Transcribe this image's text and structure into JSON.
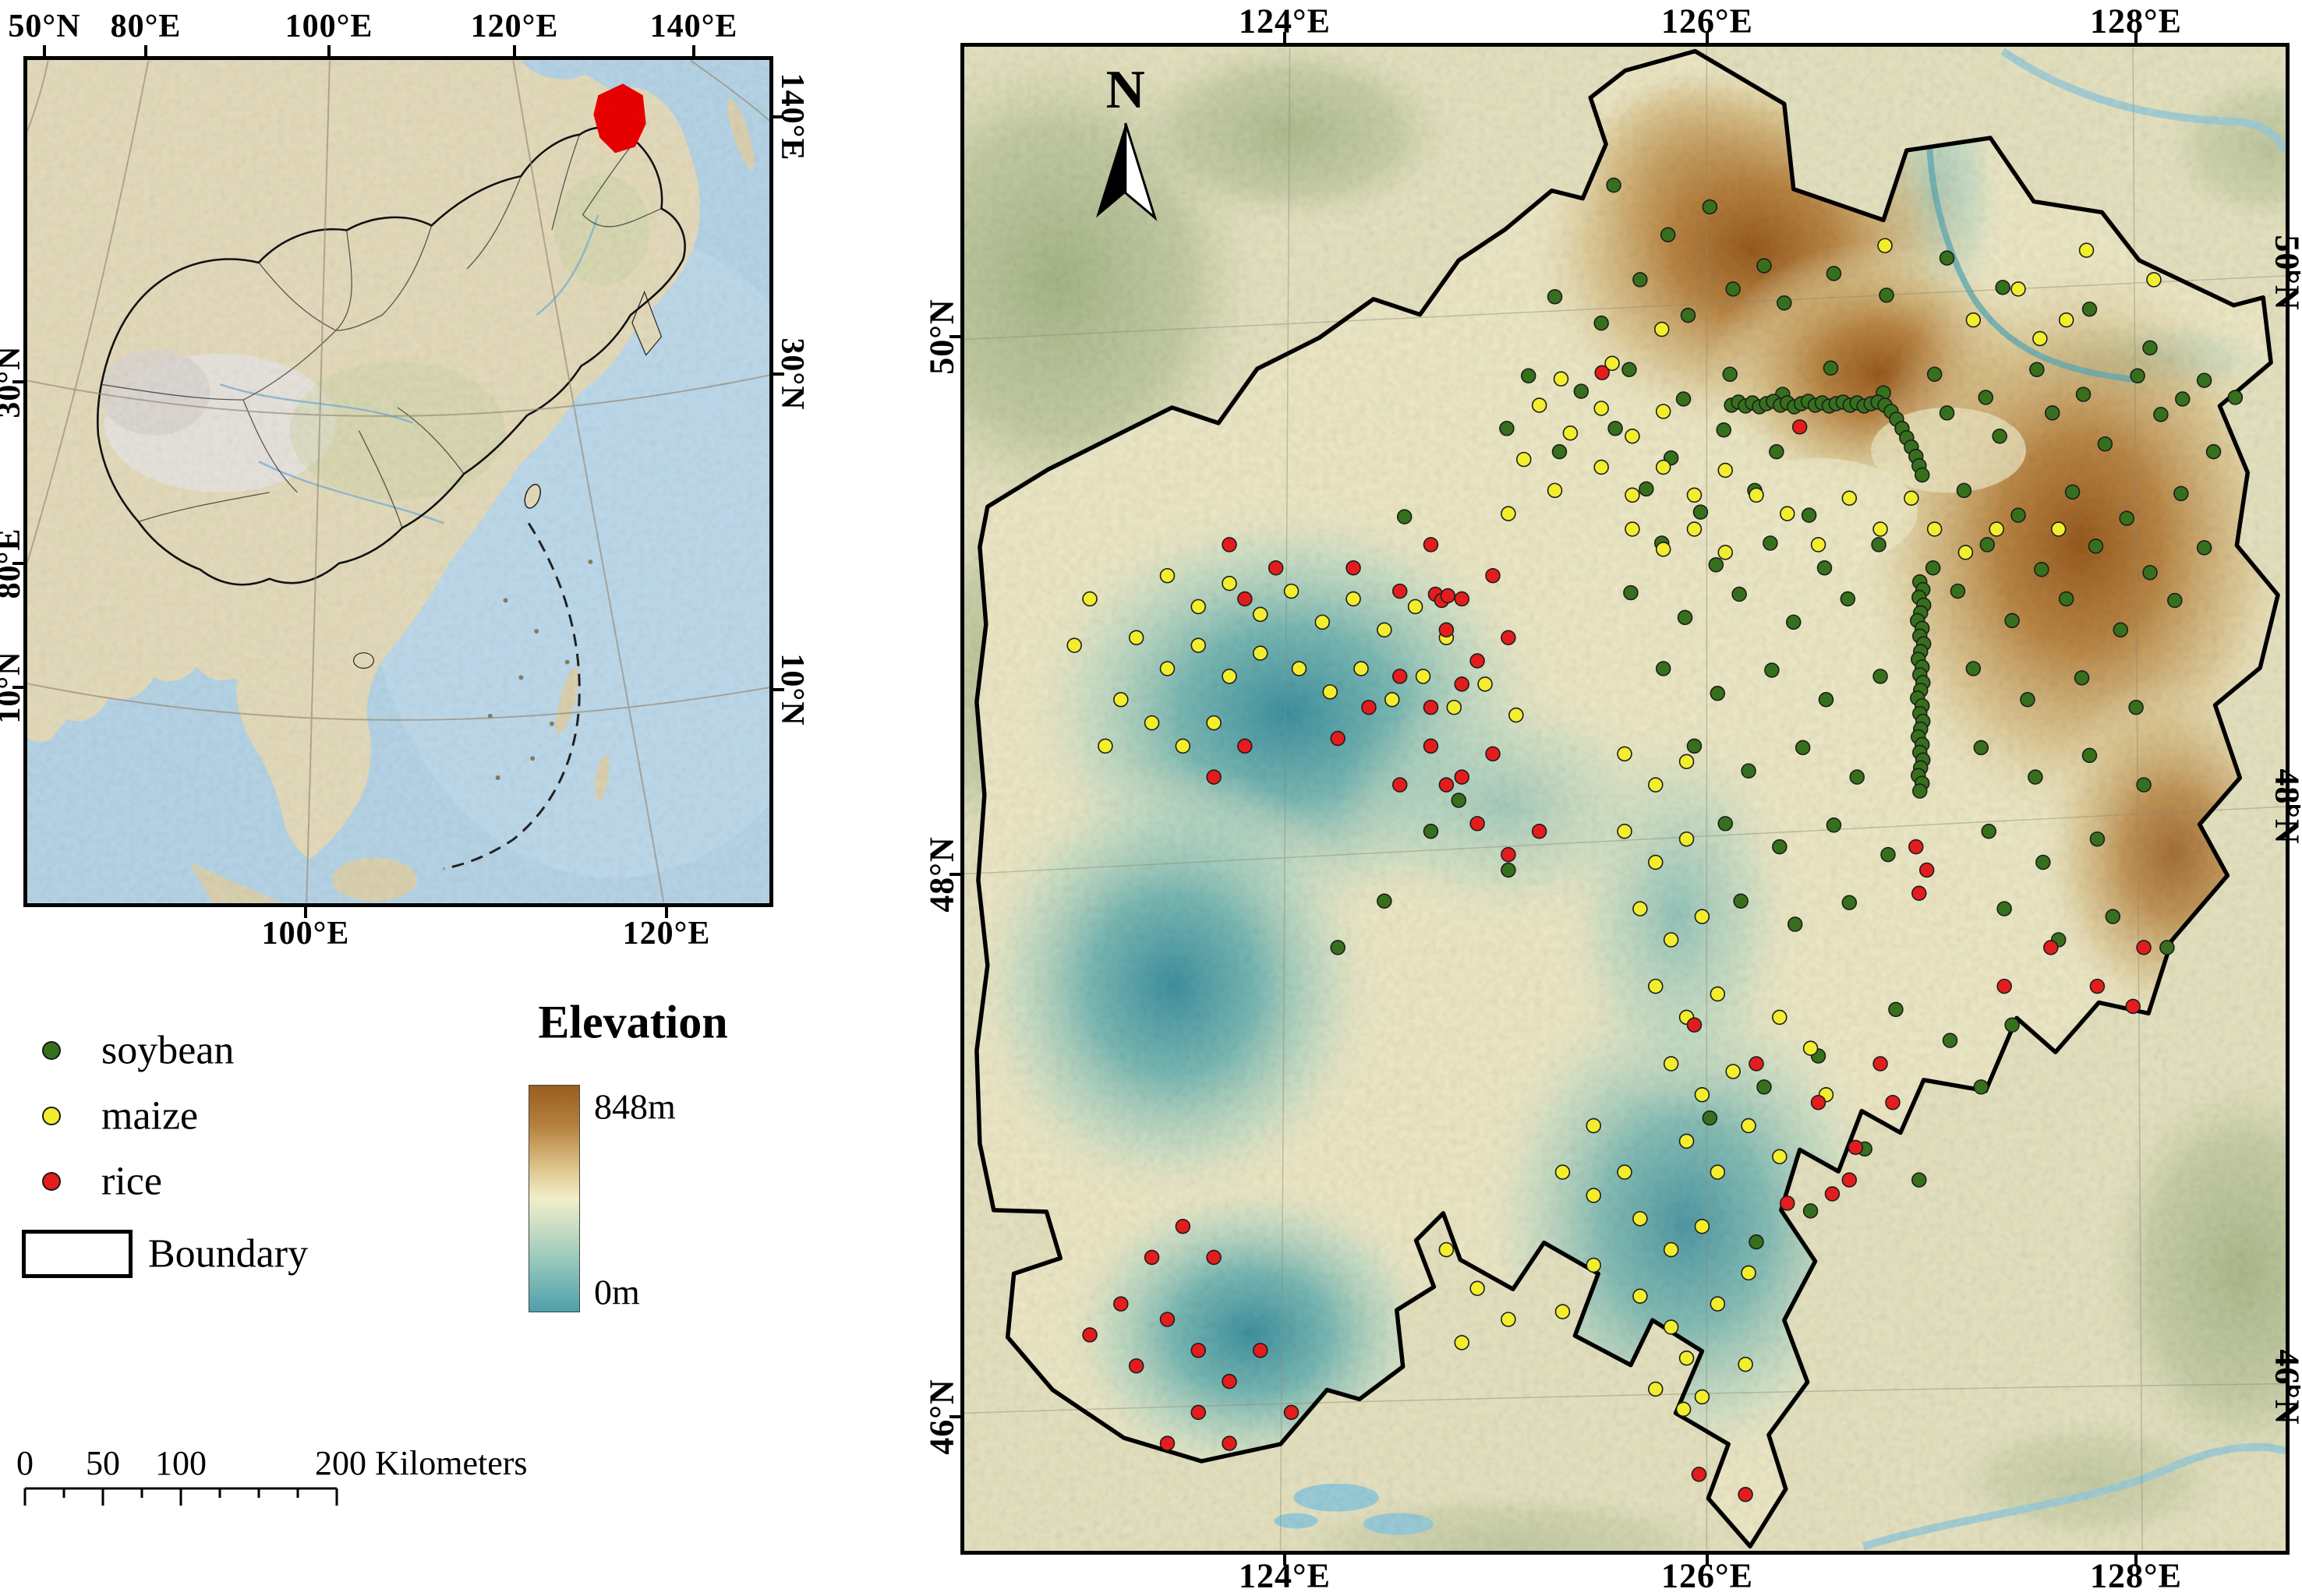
{
  "colors": {
    "soybean": "#36701c",
    "maize": "#f2ee2e",
    "rice": "#e31d1d",
    "elevation_high": "#9a5d20",
    "elevation_mid": "#f1eec9",
    "elevation_low": "#4f9fac"
  },
  "inset": {
    "top_labels": [
      "50°N",
      "80°E",
      "100°E",
      "120°E",
      "140°E"
    ],
    "right_labels": [
      "140°E",
      "30°N",
      "10°N"
    ],
    "left_labels": [
      "30°N",
      "80°E",
      "10°N"
    ],
    "bottom_labels": [
      "100°E",
      "120°E"
    ]
  },
  "legend": {
    "items": [
      {
        "label": "soybean"
      },
      {
        "label": "maize"
      },
      {
        "label": "rice"
      },
      {
        "label": "Boundary"
      }
    ],
    "elevation_title": "Elevation",
    "elevation_max": "848m",
    "elevation_min": "0m"
  },
  "scalebar": {
    "tick_labels": [
      "0",
      "50",
      "100"
    ],
    "end_label": "200 Kilometers"
  },
  "main_map": {
    "north_label": "N",
    "top_labels": [
      "124°E",
      "126°E",
      "128°E"
    ],
    "bottom_labels": [
      "124°E",
      "126°E",
      "128°E"
    ],
    "left_labels": [
      "50°N",
      "48°N",
      "46°N"
    ],
    "right_labels": [
      "50°N",
      "48°N",
      "46°N"
    ]
  },
  "points": {
    "soybean": [
      [
        838,
        178
      ],
      [
        908,
        242
      ],
      [
        962,
        206
      ],
      [
        1032,
        282
      ],
      [
        762,
        322
      ],
      [
        822,
        356
      ],
      [
        872,
        300
      ],
      [
        934,
        346
      ],
      [
        992,
        312
      ],
      [
        1058,
        330
      ],
      [
        1122,
        292
      ],
      [
        1190,
        320
      ],
      [
        1268,
        272
      ],
      [
        1340,
        310
      ],
      [
        1452,
        338
      ],
      [
        1530,
        388
      ],
      [
        1600,
        430
      ],
      [
        1640,
        452
      ],
      [
        728,
        424
      ],
      [
        796,
        444
      ],
      [
        858,
        416
      ],
      [
        928,
        454
      ],
      [
        988,
        422
      ],
      [
        1056,
        448
      ],
      [
        1118,
        414
      ],
      [
        1186,
        446
      ],
      [
        1252,
        422
      ],
      [
        1318,
        452
      ],
      [
        1384,
        416
      ],
      [
        1444,
        448
      ],
      [
        1514,
        424
      ],
      [
        1572,
        454
      ],
      [
        700,
        492
      ],
      [
        768,
        522
      ],
      [
        840,
        492
      ],
      [
        912,
        530
      ],
      [
        980,
        494
      ],
      [
        1048,
        522
      ],
      [
        1268,
        472
      ],
      [
        1336,
        502
      ],
      [
        1404,
        472
      ],
      [
        1472,
        512
      ],
      [
        1544,
        474
      ],
      [
        1612,
        522
      ],
      [
        880,
        570
      ],
      [
        950,
        600
      ],
      [
        1020,
        572
      ],
      [
        1090,
        604
      ],
      [
        1290,
        572
      ],
      [
        1360,
        604
      ],
      [
        1430,
        574
      ],
      [
        1500,
        608
      ],
      [
        1570,
        576
      ],
      [
        900,
        640
      ],
      [
        970,
        668
      ],
      [
        1040,
        640
      ],
      [
        1110,
        672
      ],
      [
        1180,
        642
      ],
      [
        1250,
        672
      ],
      [
        1320,
        642
      ],
      [
        1390,
        674
      ],
      [
        1460,
        644
      ],
      [
        1530,
        678
      ],
      [
        1600,
        646
      ],
      [
        568,
        606
      ],
      [
        860,
        704
      ],
      [
        930,
        736
      ],
      [
        1000,
        706
      ],
      [
        1070,
        742
      ],
      [
        1140,
        712
      ],
      [
        1282,
        702
      ],
      [
        1352,
        740
      ],
      [
        1422,
        712
      ],
      [
        1492,
        752
      ],
      [
        1562,
        714
      ],
      [
        902,
        802
      ],
      [
        972,
        834
      ],
      [
        1042,
        804
      ],
      [
        1112,
        842
      ],
      [
        1182,
        812
      ],
      [
        1302,
        802
      ],
      [
        1372,
        842
      ],
      [
        1442,
        814
      ],
      [
        1512,
        852
      ],
      [
        942,
        902
      ],
      [
        1012,
        934
      ],
      [
        1082,
        904
      ],
      [
        1152,
        942
      ],
      [
        1312,
        904
      ],
      [
        1382,
        942
      ],
      [
        1452,
        914
      ],
      [
        1522,
        952
      ],
      [
        982,
        1002
      ],
      [
        1052,
        1032
      ],
      [
        1122,
        1004
      ],
      [
        1192,
        1042
      ],
      [
        1322,
        1012
      ],
      [
        1392,
        1052
      ],
      [
        1462,
        1022
      ],
      [
        1002,
        1102
      ],
      [
        1072,
        1132
      ],
      [
        1142,
        1104
      ],
      [
        1342,
        1112
      ],
      [
        1412,
        1152
      ],
      [
        1482,
        1122
      ],
      [
        1552,
        1162
      ],
      [
        1202,
        1242
      ],
      [
        1272,
        1282
      ],
      [
        1102,
        1302
      ],
      [
        1032,
        1342
      ],
      [
        962,
        1382
      ],
      [
        1162,
        1422
      ],
      [
        1232,
        1462
      ],
      [
        1092,
        1502
      ],
      [
        1022,
        1542
      ],
      [
        1312,
        1342
      ],
      [
        1352,
        1262
      ],
      [
        638,
        972
      ],
      [
        702,
        1062
      ],
      [
        542,
        1102
      ],
      [
        482,
        1162
      ],
      [
        602,
        1012
      ],
      [
        990,
        462
      ],
      [
        999,
        458
      ],
      [
        1008,
        463
      ],
      [
        1017,
        459
      ],
      [
        1026,
        464
      ],
      [
        1035,
        460
      ],
      [
        1044,
        457
      ],
      [
        1053,
        462
      ],
      [
        1062,
        459
      ],
      [
        1071,
        464
      ],
      [
        1080,
        460
      ],
      [
        1089,
        457
      ],
      [
        1098,
        462
      ],
      [
        1107,
        459
      ],
      [
        1116,
        463
      ],
      [
        1125,
        460
      ],
      [
        1134,
        458
      ],
      [
        1143,
        462
      ],
      [
        1152,
        459
      ],
      [
        1161,
        463
      ],
      [
        1170,
        460
      ],
      [
        1179,
        458
      ],
      [
        1188,
        462
      ],
      [
        1196,
        470
      ],
      [
        1203,
        480
      ],
      [
        1210,
        492
      ],
      [
        1216,
        504
      ],
      [
        1222,
        516
      ],
      [
        1228,
        528
      ],
      [
        1232,
        540
      ],
      [
        1236,
        552
      ],
      [
        1233,
        690
      ],
      [
        1237,
        700
      ],
      [
        1232,
        710
      ],
      [
        1238,
        720
      ],
      [
        1234,
        730
      ],
      [
        1230,
        740
      ],
      [
        1236,
        750
      ],
      [
        1233,
        760
      ],
      [
        1238,
        770
      ],
      [
        1234,
        780
      ],
      [
        1231,
        790
      ],
      [
        1236,
        800
      ],
      [
        1233,
        810
      ],
      [
        1237,
        820
      ],
      [
        1234,
        830
      ],
      [
        1230,
        840
      ],
      [
        1236,
        850
      ],
      [
        1233,
        860
      ],
      [
        1237,
        870
      ],
      [
        1234,
        880
      ],
      [
        1231,
        890
      ],
      [
        1236,
        900
      ],
      [
        1233,
        910
      ],
      [
        1237,
        920
      ],
      [
        1234,
        930
      ],
      [
        1231,
        940
      ],
      [
        1236,
        950
      ],
      [
        1233,
        960
      ]
    ],
    "maize": [
      [
        1188,
        256
      ],
      [
        1448,
        262
      ],
      [
        1535,
        300
      ],
      [
        1388,
        376
      ],
      [
        1302,
        352
      ],
      [
        1360,
        312
      ],
      [
        1422,
        352
      ],
      [
        900,
        364
      ],
      [
        836,
        408
      ],
      [
        770,
        428
      ],
      [
        742,
        462
      ],
      [
        782,
        498
      ],
      [
        822,
        466
      ],
      [
        862,
        502
      ],
      [
        902,
        470
      ],
      [
        822,
        542
      ],
      [
        862,
        578
      ],
      [
        902,
        542
      ],
      [
        942,
        578
      ],
      [
        982,
        546
      ],
      [
        1022,
        578
      ],
      [
        862,
        622
      ],
      [
        902,
        648
      ],
      [
        942,
        622
      ],
      [
        982,
        652
      ],
      [
        1062,
        602
      ],
      [
        1102,
        642
      ],
      [
        762,
        572
      ],
      [
        722,
        532
      ],
      [
        702,
        602
      ],
      [
        1142,
        582
      ],
      [
        1182,
        622
      ],
      [
        1222,
        582
      ],
      [
        1252,
        622
      ],
      [
        1292,
        652
      ],
      [
        1332,
        622
      ],
      [
        1412,
        622
      ],
      [
        262,
        682
      ],
      [
        302,
        722
      ],
      [
        342,
        692
      ],
      [
        382,
        732
      ],
      [
        422,
        702
      ],
      [
        462,
        742
      ],
      [
        502,
        712
      ],
      [
        542,
        752
      ],
      [
        582,
        722
      ],
      [
        622,
        762
      ],
      [
        222,
        762
      ],
      [
        262,
        802
      ],
      [
        302,
        772
      ],
      [
        342,
        812
      ],
      [
        382,
        782
      ],
      [
        432,
        802
      ],
      [
        472,
        832
      ],
      [
        512,
        802
      ],
      [
        552,
        842
      ],
      [
        592,
        812
      ],
      [
        632,
        852
      ],
      [
        672,
        822
      ],
      [
        712,
        862
      ],
      [
        202,
        842
      ],
      [
        242,
        872
      ],
      [
        282,
        902
      ],
      [
        322,
        872
      ],
      [
        162,
        712
      ],
      [
        142,
        772
      ],
      [
        182,
        902
      ],
      [
        852,
        912
      ],
      [
        892,
        952
      ],
      [
        932,
        922
      ],
      [
        852,
        1012
      ],
      [
        892,
        1052
      ],
      [
        932,
        1022
      ],
      [
        872,
        1112
      ],
      [
        912,
        1152
      ],
      [
        952,
        1122
      ],
      [
        892,
        1212
      ],
      [
        932,
        1252
      ],
      [
        972,
        1222
      ],
      [
        912,
        1312
      ],
      [
        952,
        1352
      ],
      [
        992,
        1322
      ],
      [
        932,
        1412
      ],
      [
        972,
        1452
      ],
      [
        852,
        1452
      ],
      [
        812,
        1392
      ],
      [
        1052,
        1252
      ],
      [
        1092,
        1292
      ],
      [
        1012,
        1392
      ],
      [
        1052,
        1432
      ],
      [
        1112,
        1352
      ],
      [
        872,
        1512
      ],
      [
        912,
        1552
      ],
      [
        952,
        1522
      ],
      [
        872,
        1612
      ],
      [
        912,
        1652
      ],
      [
        892,
        1732
      ],
      [
        932,
        1692
      ],
      [
        812,
        1572
      ],
      [
        772,
        1632
      ],
      [
        972,
        1622
      ],
      [
        1012,
        1582
      ],
      [
        952,
        1742
      ],
      [
        928,
        1758
      ],
      [
        1008,
        1700
      ],
      [
        622,
        1552
      ],
      [
        662,
        1602
      ],
      [
        702,
        1642
      ],
      [
        642,
        1672
      ],
      [
        772,
        1452
      ],
      [
        812,
        1482
      ]
    ],
    "rice": [
      [
        342,
        642
      ],
      [
        402,
        672
      ],
      [
        362,
        712
      ],
      [
        502,
        672
      ],
      [
        562,
        702
      ],
      [
        602,
        642
      ],
      [
        642,
        712
      ],
      [
        682,
        682
      ],
      [
        622,
        752
      ],
      [
        662,
        792
      ],
      [
        702,
        762
      ],
      [
        562,
        812
      ],
      [
        602,
        852
      ],
      [
        642,
        822
      ],
      [
        522,
        852
      ],
      [
        482,
        892
      ],
      [
        602,
        902
      ],
      [
        642,
        942
      ],
      [
        682,
        912
      ],
      [
        622,
        952
      ],
      [
        562,
        952
      ],
      [
        662,
        1002
      ],
      [
        702,
        1042
      ],
      [
        742,
        1012
      ],
      [
        362,
        902
      ],
      [
        322,
        942
      ],
      [
        608,
        706
      ],
      [
        616,
        714
      ],
      [
        624,
        708
      ],
      [
        282,
        1522
      ],
      [
        322,
        1562
      ],
      [
        242,
        1562
      ],
      [
        202,
        1622
      ],
      [
        262,
        1642
      ],
      [
        302,
        1682
      ],
      [
        222,
        1702
      ],
      [
        342,
        1722
      ],
      [
        382,
        1682
      ],
      [
        302,
        1762
      ],
      [
        262,
        1802
      ],
      [
        342,
        1802
      ],
      [
        422,
        1762
      ],
      [
        162,
        1662
      ],
      [
        942,
        1262
      ],
      [
        1022,
        1312
      ],
      [
        1102,
        1362
      ],
      [
        1182,
        1312
      ],
      [
        1198,
        1362
      ],
      [
        1142,
        1462
      ],
      [
        1062,
        1492
      ],
      [
        1402,
        1162
      ],
      [
        1462,
        1212
      ],
      [
        1522,
        1162
      ],
      [
        1508,
        1238
      ],
      [
        1342,
        1212
      ],
      [
        1150,
        1420
      ],
      [
        1120,
        1480
      ],
      [
        1228,
        1032
      ],
      [
        1242,
        1062
      ],
      [
        1232,
        1092
      ],
      [
        823,
        420
      ],
      [
        1078,
        490
      ],
      [
        1008,
        1868
      ],
      [
        948,
        1842
      ]
    ]
  }
}
